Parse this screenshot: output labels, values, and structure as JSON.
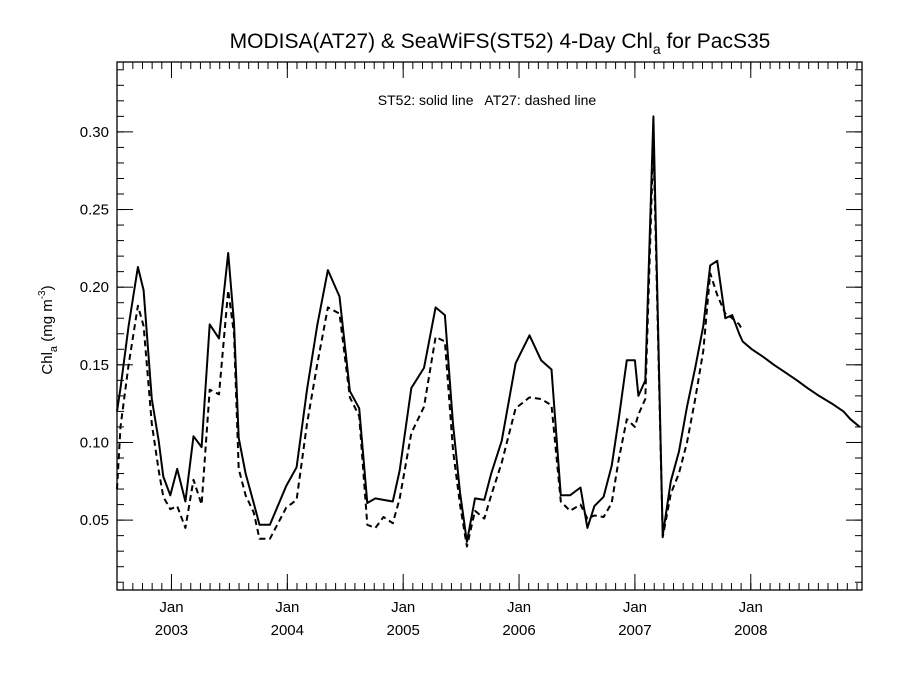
{
  "chart_data": {
    "type": "line",
    "title": {
      "main": "MODISA(AT27) & SeaWiFS(ST52) 4-Day Chl",
      "sub": "a",
      "tail": " for PacS35"
    },
    "ylabel": {
      "main": "Chl",
      "sub": "a",
      "unit": " (mg m",
      "sup": "-3",
      "close": ")"
    },
    "annotation": "ST52: solid line   AT27: dashed line",
    "xlim": [
      2002.53,
      2008.96
    ],
    "ylim": [
      0.005,
      0.345
    ],
    "yticks": [
      0.05,
      0.1,
      0.15,
      0.2,
      0.25,
      0.3
    ],
    "ytick_labels": [
      "0.05",
      "0.10",
      "0.15",
      "0.20",
      "0.25",
      "0.30"
    ],
    "x_minor_per_year": 12,
    "y_minor_step": 0.01,
    "xticks": [
      {
        "x": 2003.0,
        "month": "Jan",
        "year": "2003"
      },
      {
        "x": 2004.0,
        "month": "Jan",
        "year": "2004"
      },
      {
        "x": 2005.0,
        "month": "Jan",
        "year": "2005"
      },
      {
        "x": 2006.0,
        "month": "Jan",
        "year": "2006"
      },
      {
        "x": 2007.0,
        "month": "Jan",
        "year": "2007"
      },
      {
        "x": 2008.0,
        "month": "Jan",
        "year": "2008"
      }
    ],
    "grid": false,
    "series": [
      {
        "name": "ST52",
        "style": "solid",
        "color": "#000000",
        "x": [
          2002.53,
          2002.56,
          2002.63,
          2002.71,
          2002.76,
          2002.83,
          2002.89,
          2002.93,
          2002.99,
          2003.05,
          2003.12,
          2003.19,
          2003.26,
          2003.33,
          2003.41,
          2003.49,
          2003.54,
          2003.58,
          2003.64,
          2003.71,
          2003.76,
          2003.85,
          2003.99,
          2004.08,
          2004.17,
          2004.26,
          2004.35,
          2004.45,
          2004.54,
          2004.62,
          2004.69,
          2004.76,
          2004.83,
          2004.91,
          2004.97,
          2005.07,
          2005.18,
          2005.28,
          2005.36,
          2005.43,
          2005.49,
          2005.55,
          2005.62,
          2005.7,
          2005.76,
          2005.85,
          2005.97,
          2006.09,
          2006.19,
          2006.28,
          2006.36,
          2006.44,
          2006.53,
          2006.59,
          2006.65,
          2006.73,
          2006.8,
          2006.86,
          2006.93,
          2007.0,
          2007.03,
          2007.09,
          2007.16,
          2007.24,
          2007.31,
          2007.38,
          2007.45,
          2007.52,
          2007.59,
          2007.65,
          2007.71,
          2007.78,
          2007.84,
          2007.9,
          2007.93,
          2008.01,
          2008.11,
          2008.2,
          2008.3,
          2008.4,
          2008.49,
          2008.59,
          2008.7,
          2008.8,
          2008.86,
          2008.94
        ],
        "y": [
          0.12,
          0.135,
          0.175,
          0.213,
          0.198,
          0.128,
          0.101,
          0.078,
          0.066,
          0.083,
          0.062,
          0.104,
          0.097,
          0.176,
          0.167,
          0.222,
          0.177,
          0.103,
          0.08,
          0.061,
          0.047,
          0.047,
          0.072,
          0.084,
          0.134,
          0.176,
          0.211,
          0.194,
          0.133,
          0.122,
          0.061,
          0.064,
          0.063,
          0.062,
          0.082,
          0.135,
          0.148,
          0.187,
          0.182,
          0.112,
          0.068,
          0.036,
          0.064,
          0.063,
          0.08,
          0.101,
          0.151,
          0.169,
          0.153,
          0.147,
          0.066,
          0.066,
          0.071,
          0.045,
          0.059,
          0.065,
          0.085,
          0.115,
          0.153,
          0.153,
          0.13,
          0.14,
          0.31,
          0.04,
          0.075,
          0.094,
          0.123,
          0.148,
          0.175,
          0.214,
          0.217,
          0.18,
          0.182,
          0.17,
          0.165,
          0.16,
          0.155,
          0.15,
          0.145,
          0.14,
          0.135,
          0.13,
          0.125,
          0.12,
          0.115,
          0.11
        ]
      },
      {
        "name": "AT27",
        "style": "dashed",
        "color": "#000000",
        "x": [
          2002.53,
          2002.56,
          2002.63,
          2002.71,
          2002.76,
          2002.83,
          2002.89,
          2002.93,
          2002.99,
          2003.05,
          2003.12,
          2003.19,
          2003.26,
          2003.33,
          2003.41,
          2003.49,
          2003.54,
          2003.58,
          2003.64,
          2003.71,
          2003.76,
          2003.85,
          2003.99,
          2004.08,
          2004.17,
          2004.26,
          2004.35,
          2004.45,
          2004.54,
          2004.62,
          2004.69,
          2004.76,
          2004.83,
          2004.91,
          2004.97,
          2005.07,
          2005.18,
          2005.28,
          2005.36,
          2005.43,
          2005.49,
          2005.55,
          2005.62,
          2005.7,
          2005.76,
          2005.85,
          2005.97,
          2006.09,
          2006.19,
          2006.28,
          2006.36,
          2006.44,
          2006.53,
          2006.59,
          2006.65,
          2006.73,
          2006.8,
          2006.86,
          2006.93,
          2007.0,
          2007.03,
          2007.09,
          2007.16,
          2007.24,
          2007.31,
          2007.38,
          2007.45,
          2007.52,
          2007.59,
          2007.65,
          2007.71,
          2007.78,
          2007.84,
          2007.9,
          2007.93
        ],
        "y": [
          0.07,
          0.11,
          0.15,
          0.188,
          0.175,
          0.112,
          0.082,
          0.065,
          0.057,
          0.059,
          0.045,
          0.076,
          0.06,
          0.134,
          0.131,
          0.198,
          0.17,
          0.083,
          0.066,
          0.055,
          0.038,
          0.038,
          0.058,
          0.063,
          0.112,
          0.151,
          0.187,
          0.183,
          0.129,
          0.117,
          0.047,
          0.045,
          0.052,
          0.048,
          0.064,
          0.106,
          0.123,
          0.168,
          0.165,
          0.095,
          0.06,
          0.033,
          0.056,
          0.051,
          0.066,
          0.087,
          0.122,
          0.129,
          0.128,
          0.124,
          0.062,
          0.056,
          0.06,
          0.051,
          0.053,
          0.052,
          0.061,
          0.089,
          0.115,
          0.11,
          0.118,
          0.128,
          0.295,
          0.039,
          0.067,
          0.08,
          0.1,
          0.128,
          0.159,
          0.209,
          0.195,
          0.183,
          0.18,
          0.176,
          0.172
        ]
      }
    ]
  }
}
